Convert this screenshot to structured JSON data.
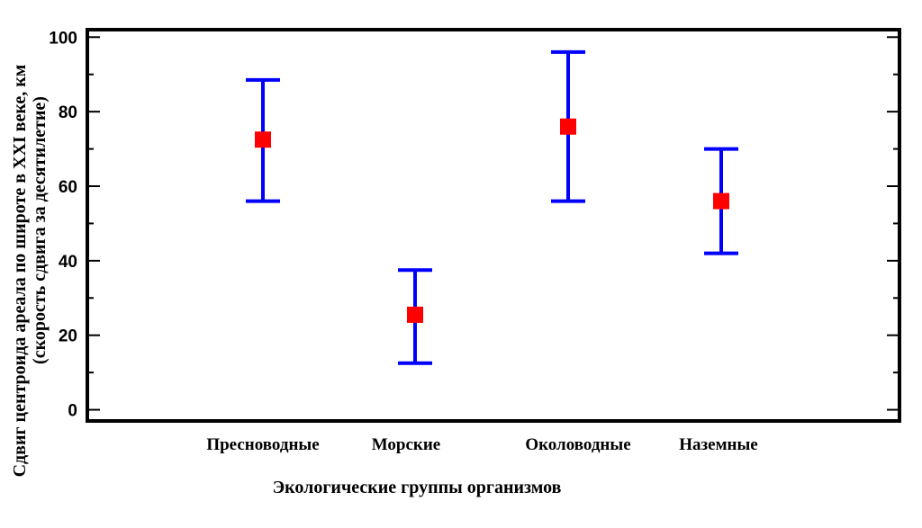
{
  "chart_data": {
    "type": "scatter",
    "title": "",
    "xlabel": "Экологические группы организмов",
    "ylabel": "Сдвиг центроида ареала по широте в XXI веке, км",
    "ylabel_sub": "(скорость сдвига за десятилетие)",
    "categories": [
      "Пресноводные",
      "Морские",
      "Околоводные",
      "Наземные"
    ],
    "series": [
      {
        "values": [
          72.5,
          25.5,
          76,
          56
        ],
        "lower": [
          56,
          12.5,
          56,
          42
        ],
        "upper": [
          88.5,
          37.5,
          96,
          70
        ]
      }
    ],
    "ylim": [
      -3,
      102
    ],
    "yticks": [
      0,
      20,
      40,
      60,
      80,
      100
    ],
    "grid": false,
    "colors": {
      "marker": "#ff0000",
      "errorbar": "#0000ff",
      "frame": "#000000"
    }
  }
}
